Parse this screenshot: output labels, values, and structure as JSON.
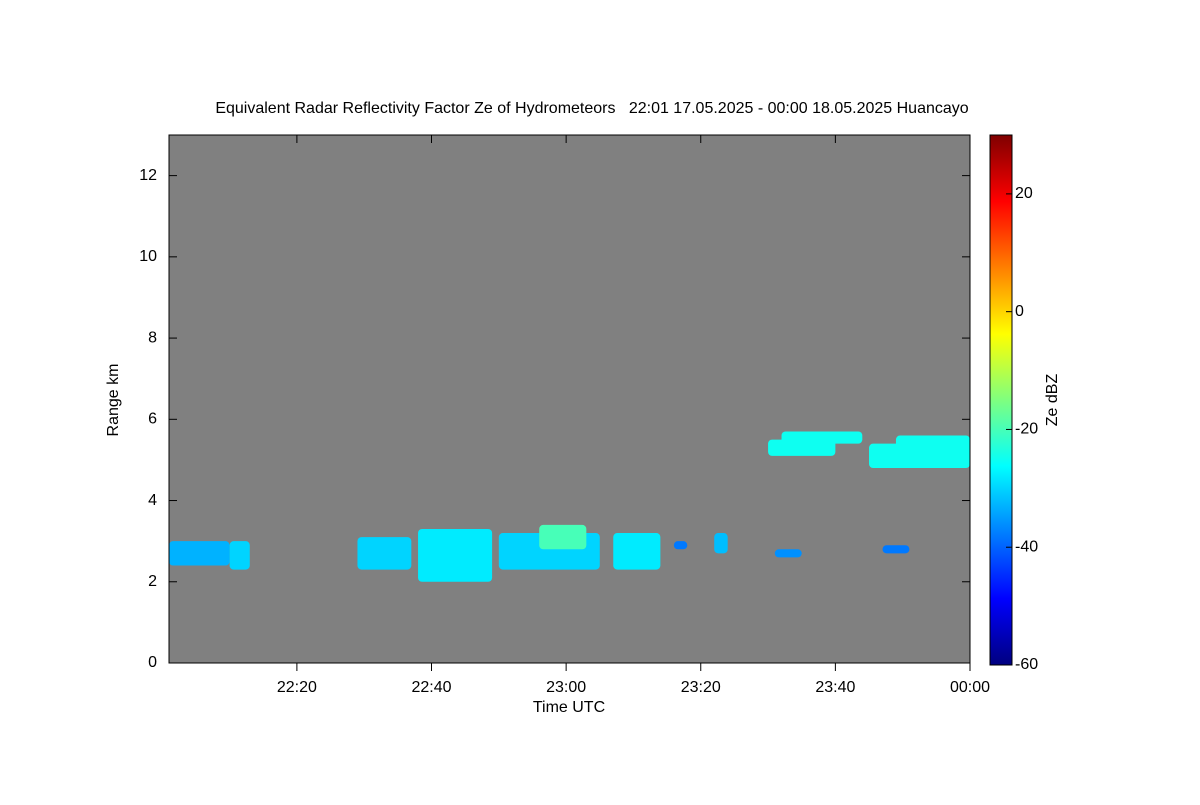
{
  "chart_data": {
    "type": "heatmap",
    "title": "Equivalent Radar Reflectivity Factor Ze of Hydrometeors   22:01 17.05.2025 - 00:00 18.05.2025 Huancayo",
    "xlabel": "Time UTC",
    "ylabel": "Range km",
    "colorbar_label": "Ze dBZ",
    "xlim": [
      1321,
      1440
    ],
    "xticks": [
      {
        "value": 1340,
        "label": "22:20"
      },
      {
        "value": 1360,
        "label": "22:40"
      },
      {
        "value": 1380,
        "label": "23:00"
      },
      {
        "value": 1400,
        "label": "23:20"
      },
      {
        "value": 1420,
        "label": "23:40"
      },
      {
        "value": 1440,
        "label": "00:00"
      }
    ],
    "ylim": [
      0,
      13
    ],
    "yticks": [
      0,
      2,
      4,
      6,
      8,
      10,
      12
    ],
    "clim": [
      -60,
      30
    ],
    "cticks": [
      -60,
      -40,
      -20,
      0,
      20
    ],
    "background": "#808080",
    "colormap": [
      "#00007f",
      "#0000ff",
      "#007fff",
      "#00ffff",
      "#7fff7f",
      "#ffff00",
      "#ff7f00",
      "#ff0000",
      "#7f0000"
    ],
    "echoes": [
      {
        "x": [
          1321,
          1330
        ],
        "y": [
          2.4,
          3.0
        ],
        "value": -33
      },
      {
        "x": [
          1330,
          1333
        ],
        "y": [
          2.3,
          3.0
        ],
        "value": -30
      },
      {
        "x": [
          1349,
          1357
        ],
        "y": [
          2.3,
          3.1
        ],
        "value": -30
      },
      {
        "x": [
          1358,
          1369
        ],
        "y": [
          2.0,
          3.3
        ],
        "value": -28
      },
      {
        "x": [
          1370,
          1385
        ],
        "y": [
          2.3,
          3.2
        ],
        "value": -30
      },
      {
        "x": [
          1376,
          1383
        ],
        "y": [
          2.8,
          3.4
        ],
        "value": -20
      },
      {
        "x": [
          1387,
          1394
        ],
        "y": [
          2.3,
          3.2
        ],
        "value": -28
      },
      {
        "x": [
          1396,
          1398
        ],
        "y": [
          2.8,
          3.0
        ],
        "value": -38
      },
      {
        "x": [
          1402,
          1404
        ],
        "y": [
          2.7,
          3.2
        ],
        "value": -32
      },
      {
        "x": [
          1411,
          1415
        ],
        "y": [
          2.6,
          2.8
        ],
        "value": -36
      },
      {
        "x": [
          1427,
          1431
        ],
        "y": [
          2.7,
          2.9
        ],
        "value": -38
      },
      {
        "x": [
          1410,
          1420
        ],
        "y": [
          5.1,
          5.5
        ],
        "value": -25
      },
      {
        "x": [
          1412,
          1424
        ],
        "y": [
          5.4,
          5.7
        ],
        "value": -25
      },
      {
        "x": [
          1425,
          1440
        ],
        "y": [
          4.8,
          5.4
        ],
        "value": -25
      },
      {
        "x": [
          1429,
          1440
        ],
        "y": [
          5.2,
          5.6
        ],
        "value": -25
      }
    ]
  }
}
